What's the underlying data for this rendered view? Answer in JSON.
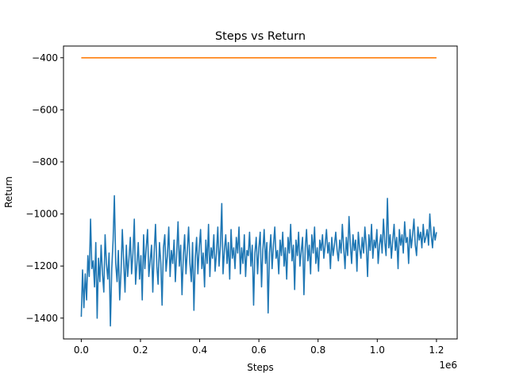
{
  "chart_data": {
    "type": "line",
    "title": "Steps vs Return",
    "xlabel": "Steps",
    "ylabel": "Return",
    "x_offset_label": "1e6",
    "xlim": [
      -0.06,
      1.27
    ],
    "ylim": [
      -1480,
      -355
    ],
    "xticks": [
      0.0,
      0.2,
      0.4,
      0.6,
      0.8,
      1.0,
      1.2
    ],
    "xtick_labels": [
      "0.0",
      "0.2",
      "0.4",
      "0.6",
      "0.8",
      "1.0",
      "1.2"
    ],
    "yticks": [
      -1400,
      -1200,
      -1000,
      -800,
      -600,
      -400
    ],
    "ytick_labels": [
      "−1400",
      "−1200",
      "−1000",
      "−800",
      "−600",
      "−400"
    ],
    "grid": false,
    "series": [
      {
        "color": "#1f77b4",
        "x_start": 0.0,
        "x_end": 1.2,
        "values": [
          -1395,
          -1215,
          -1360,
          -1230,
          -1330,
          -1160,
          -1240,
          -1020,
          -1210,
          -1180,
          -1280,
          -1110,
          -1400,
          -1170,
          -1260,
          -1120,
          -1230,
          -1300,
          -1080,
          -1190,
          -1250,
          -1150,
          -1430,
          -1210,
          -1100,
          -930,
          -1190,
          -1260,
          -1140,
          -1330,
          -1220,
          -1060,
          -1180,
          -1300,
          -1120,
          -1240,
          -1170,
          -1090,
          -1230,
          -1150,
          -1020,
          -1270,
          -1190,
          -1110,
          -1250,
          -1160,
          -1330,
          -1080,
          -1210,
          -1130,
          -1060,
          -1240,
          -1180,
          -1120,
          -1300,
          -1150,
          -1040,
          -1200,
          -1270,
          -1110,
          -1190,
          -1350,
          -1130,
          -1080,
          -1220,
          -1160,
          -1050,
          -1240,
          -1140,
          -1190,
          -1100,
          -1260,
          -1150,
          -1030,
          -1200,
          -1120,
          -1310,
          -1160,
          -1080,
          -1230,
          -1140,
          -1050,
          -1190,
          -1260,
          -1110,
          -1370,
          -1170,
          -1090,
          -1230,
          -1130,
          -1060,
          -1210,
          -1150,
          -1280,
          -1100,
          -1190,
          -1040,
          -1240,
          -1130,
          -1170,
          -1080,
          -1220,
          -1150,
          -1050,
          -1200,
          -1120,
          -960,
          -1230,
          -1140,
          -1080,
          -1190,
          -1110,
          -1250,
          -1060,
          -1170,
          -1130,
          -1210,
          -1090,
          -1150,
          -1050,
          -1230,
          -1130,
          -1190,
          -1080,
          -1240,
          -1140,
          -1160,
          -1070,
          -1200,
          -1120,
          -1350,
          -1150,
          -1090,
          -1230,
          -1130,
          -1070,
          -1280,
          -1140,
          -1060,
          -1190,
          -1110,
          -1380,
          -1150,
          -1080,
          -1210,
          -1120,
          -1050,
          -1170,
          -1140,
          -1230,
          -1100,
          -1160,
          -1070,
          -1200,
          -1130,
          -1250,
          -1090,
          -1150,
          -1040,
          -1180,
          -1120,
          -1290,
          -1100,
          -1160,
          -1070,
          -1200,
          -1140,
          -1090,
          -1310,
          -1130,
          -1060,
          -1180,
          -1120,
          -1230,
          -1080,
          -1150,
          -1050,
          -1190,
          -1130,
          -1220,
          -1100,
          -1140,
          -1080,
          -1170,
          -1120,
          -1060,
          -1150,
          -1110,
          -1210,
          -1090,
          -1160,
          -1120,
          -1070,
          -1140,
          -1180,
          -1100,
          -1150,
          -1040,
          -1130,
          -1210,
          -1090,
          -1160,
          -1010,
          -1120,
          -1190,
          -1080,
          -1140,
          -1100,
          -1220,
          -1070,
          -1130,
          -1170,
          -1090,
          -1150,
          -1050,
          -1120,
          -1240,
          -1080,
          -1140,
          -1040,
          -1170,
          -1100,
          -1130,
          -1060,
          -1190,
          -1120,
          -1080,
          -1150,
          -1020,
          -1110,
          -1160,
          -940,
          -1130,
          -1080,
          -1170,
          -1100,
          -1040,
          -1140,
          -1090,
          -1210,
          -1060,
          -1120,
          -1080,
          -1150,
          -1030,
          -1110,
          -1090,
          -1190,
          -1060,
          -1130,
          -1080,
          -1020,
          -1120,
          -1160,
          -1050,
          -1100,
          -1070,
          -1130,
          -1040,
          -1110,
          -1090,
          -1060,
          -1120,
          -1000,
          -1080,
          -1130,
          -1050,
          -1100,
          -1070
        ]
      },
      {
        "color": "#ff7f0e",
        "x_start": 0.0,
        "x_end": 1.2,
        "values": [
          -400,
          -400
        ]
      }
    ]
  }
}
